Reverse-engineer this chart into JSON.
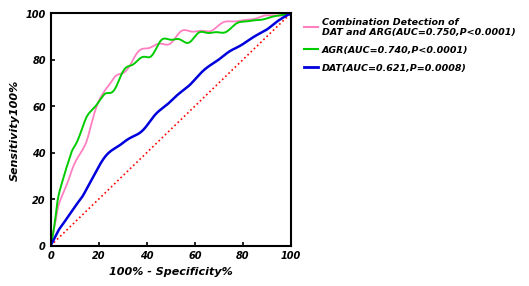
{
  "xlabel": "100% - Specificity%",
  "ylabel": "Sensitivity100%",
  "xlim": [
    0,
    100
  ],
  "ylim": [
    0,
    100
  ],
  "xticks": [
    0,
    20,
    40,
    60,
    80,
    100
  ],
  "yticks": [
    0,
    20,
    40,
    60,
    80,
    100
  ],
  "reference_color": "#FF0000",
  "combination_color": "#FF80C0",
  "agr_color": "#00CC00",
  "dat_color": "#0000DD",
  "legend_labels": [
    "Combination Detection of\nDAT and ARG(AUC=0.750,P<0.0001)",
    "AGR(AUC=0.740,P<0.0001)",
    "DAT(AUC=0.621,P=0.0008)"
  ],
  "comb_x": [
    0,
    1,
    2,
    3,
    5,
    7,
    9,
    11,
    13,
    15,
    17,
    19,
    21,
    23,
    25,
    27,
    30,
    33,
    37,
    40,
    45,
    50,
    55,
    60,
    65,
    70,
    75,
    80,
    85,
    90,
    95,
    100
  ],
  "comb_y": [
    0,
    5,
    10,
    16,
    22,
    27,
    33,
    38,
    42,
    46,
    52,
    58,
    63,
    67,
    70,
    73,
    76,
    79,
    82,
    84,
    87,
    89,
    91,
    92,
    93,
    95,
    96,
    97,
    98,
    99,
    99,
    100
  ],
  "agr_x": [
    0,
    1,
    2,
    3,
    5,
    7,
    9,
    11,
    13,
    15,
    17,
    19,
    21,
    23,
    25,
    27,
    30,
    33,
    37,
    40,
    45,
    50,
    55,
    60,
    65,
    70,
    75,
    80,
    85,
    90,
    95,
    100
  ],
  "agr_y": [
    0,
    5,
    12,
    20,
    28,
    35,
    42,
    46,
    50,
    54,
    57,
    60,
    63,
    66,
    68,
    70,
    73,
    76,
    80,
    83,
    86,
    88,
    89,
    90,
    91,
    92,
    94,
    96,
    97,
    98,
    99,
    100
  ],
  "dat_x": [
    0,
    1,
    2,
    3,
    5,
    7,
    9,
    11,
    13,
    15,
    17,
    20,
    25,
    30,
    35,
    40,
    45,
    50,
    55,
    60,
    65,
    70,
    75,
    80,
    85,
    90,
    95,
    100
  ],
  "dat_y": [
    0,
    2,
    4,
    6,
    9,
    12,
    15,
    18,
    21,
    25,
    29,
    34,
    40,
    44,
    48,
    52,
    57,
    62,
    67,
    72,
    76,
    80,
    84,
    87,
    90,
    93,
    97,
    100
  ]
}
